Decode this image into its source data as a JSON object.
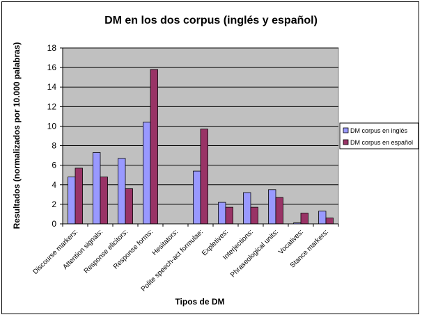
{
  "chart_data": {
    "type": "bar",
    "title": "DM en los dos corpus (inglés y español)",
    "xlabel": "Tipos de DM",
    "ylabel": "Resultados (normalizados por 10.000 palabras)",
    "ylim": [
      0,
      18
    ],
    "yticks": [
      0,
      2,
      4,
      6,
      8,
      10,
      12,
      14,
      16,
      18
    ],
    "grid": true,
    "legend_position": "right",
    "plot_background": "#c0c0c0",
    "categories": [
      "Discourse markers:",
      "Attention signals:",
      "Response elicitors:",
      "Response forms:",
      "Hesitators:",
      "Polite speech-act formulae:",
      "Expletives:",
      "Interjections:",
      "Phraseological units:",
      "Vocatives:",
      "Stance markers:"
    ],
    "series": [
      {
        "name": "DM corpus en inglés",
        "color": "#9999ff",
        "values": [
          4.8,
          7.3,
          6.7,
          10.4,
          0,
          5.4,
          2.2,
          3.2,
          3.5,
          0.1,
          1.3
        ]
      },
      {
        "name": "DM corpus en español",
        "color": "#993366",
        "values": [
          5.7,
          4.8,
          3.6,
          15.8,
          0,
          9.7,
          1.7,
          1.7,
          2.7,
          1.1,
          0.6
        ]
      }
    ]
  }
}
